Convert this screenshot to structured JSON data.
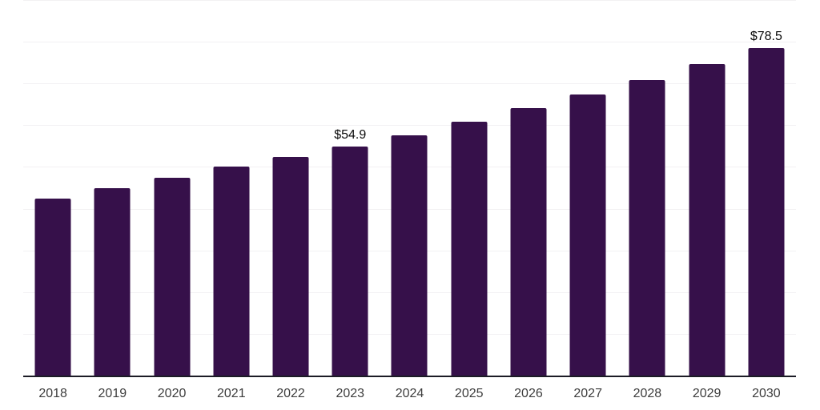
{
  "chart_data": {
    "type": "bar",
    "title": "",
    "xlabel": "",
    "ylabel": "",
    "categories": [
      "2018",
      "2019",
      "2020",
      "2021",
      "2022",
      "2023",
      "2024",
      "2025",
      "2026",
      "2027",
      "2028",
      "2029",
      "2030"
    ],
    "values": [
      42.4,
      44.9,
      47.4,
      50.0,
      52.4,
      54.9,
      57.6,
      60.8,
      64.0,
      67.3,
      70.9,
      74.6,
      78.5
    ],
    "value_labels": [
      {
        "category": "2023",
        "text": "$54.9"
      },
      {
        "category": "2030",
        "text": "$78.5"
      }
    ],
    "ylim": [
      0,
      90
    ],
    "grid": true,
    "gridline_step": 10,
    "y_tick_labels_shown": false,
    "legend": "none",
    "colors": {
      "bar": "#36104A",
      "gridline": "#F2F1F3",
      "axis_line": "#1C1C26",
      "tick_label": "#3D3D3D",
      "value_label": "#0A0A0A",
      "background": "#FFFFFF"
    }
  }
}
